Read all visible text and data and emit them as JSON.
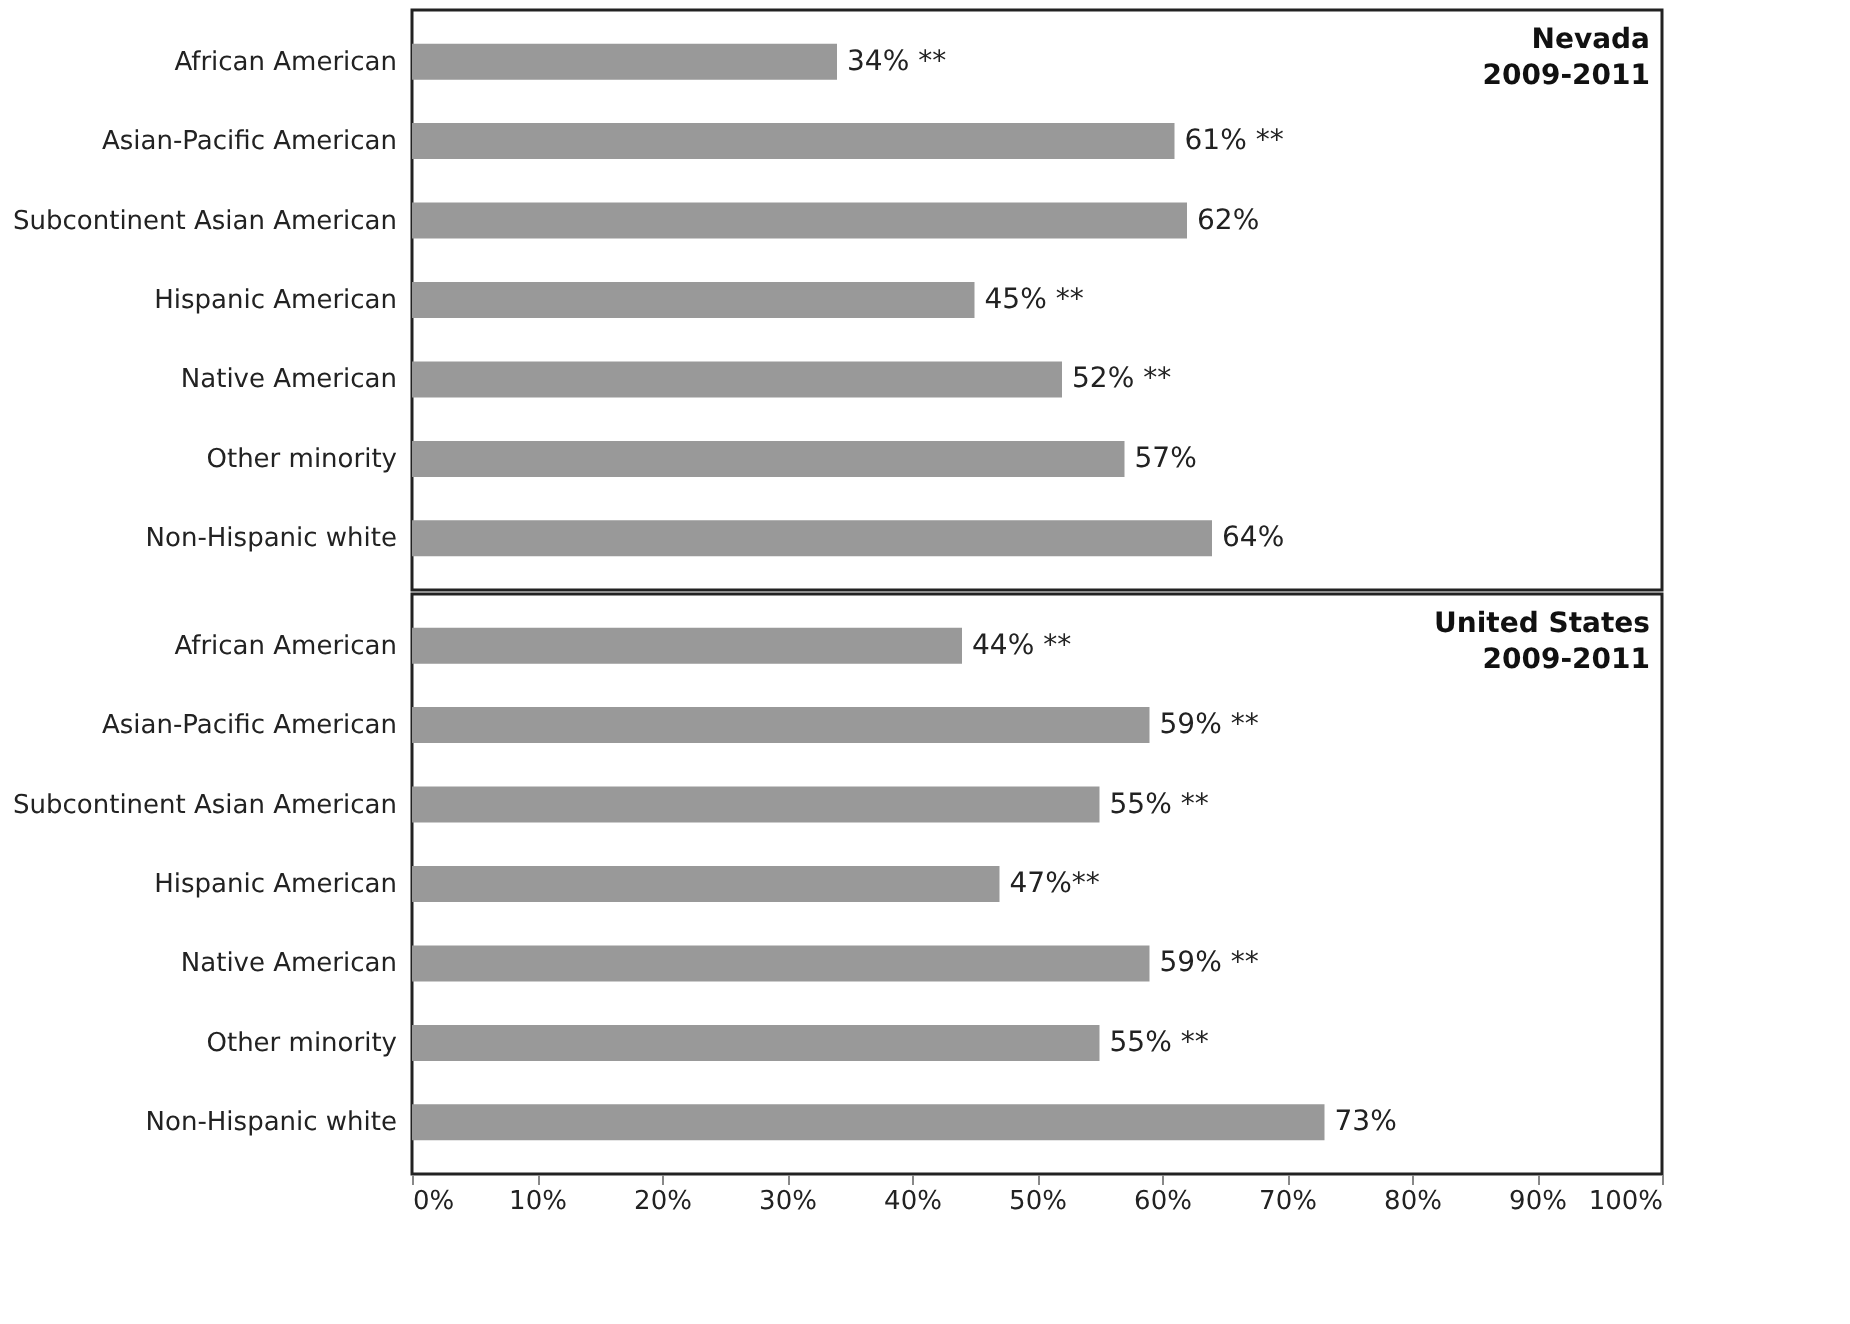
{
  "chart_data": [
    {
      "type": "bar",
      "orientation": "horizontal",
      "title": "Nevada\n2009-2011",
      "categories": [
        "African American",
        "Asian-Pacific American",
        "Subcontinent Asian American",
        "Hispanic American",
        "Native American",
        "Other minority",
        "Non-Hispanic white"
      ],
      "values": [
        34,
        61,
        62,
        45,
        52,
        57,
        64
      ],
      "value_labels": [
        "34% **",
        "61% **",
        "62%",
        "45% **",
        "52% **",
        "57%",
        "64%"
      ],
      "color": "#999999",
      "xlim": [
        0,
        100
      ],
      "tick_labels": "y",
      "grid": false
    },
    {
      "type": "bar",
      "orientation": "horizontal",
      "title": "United States\n2009-2011",
      "categories": [
        "African American",
        "Asian-Pacific American",
        "Subcontinent Asian American",
        "Hispanic American",
        "Native American",
        "Other minority",
        "Non-Hispanic white"
      ],
      "values": [
        44,
        59,
        55,
        47,
        59,
        55,
        73
      ],
      "value_labels": [
        "44% **",
        "59% **",
        "55% **",
        "47%**",
        "59% **",
        "55% **",
        "73%"
      ],
      "color": "#999999",
      "xlim": [
        0,
        100
      ],
      "xticks": [
        {
          "value": 0,
          "label": "0%"
        },
        {
          "value": 10,
          "label": "10%"
        },
        {
          "value": 20,
          "label": "20%"
        },
        {
          "value": 30,
          "label": "30%"
        },
        {
          "value": 40,
          "label": "40%"
        },
        {
          "value": 50,
          "label": "50%"
        },
        {
          "value": 60,
          "label": "60%"
        },
        {
          "value": 70,
          "label": "70%"
        },
        {
          "value": 80,
          "label": "80%"
        },
        {
          "value": 90,
          "label": "90%"
        },
        {
          "value": 100,
          "label": "100%"
        }
      ],
      "grid": false
    }
  ]
}
